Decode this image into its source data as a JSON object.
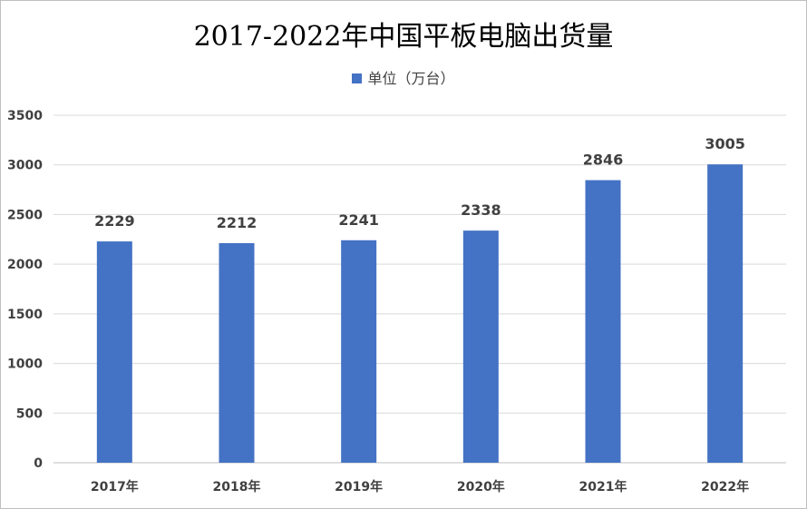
{
  "chart_data": {
    "type": "bar",
    "title": "2017-2022年中国平板电脑出货量",
    "legend_position": "top",
    "grid": true,
    "categories": [
      "2017年",
      "2018年",
      "2019年",
      "2020年",
      "2021年",
      "2022年"
    ],
    "series": [
      {
        "name": "单位（万台）",
        "color": "#4472c4",
        "values": [
          2229,
          2212,
          2241,
          2338,
          2846,
          3005
        ]
      }
    ],
    "ylim": [
      0,
      3500
    ],
    "yticks": [
      "0",
      "500",
      "1000",
      "1500",
      "2000",
      "2500",
      "3000",
      "3500"
    ],
    "data_labels": [
      "2229",
      "2212",
      "2241",
      "2338",
      "2846",
      "3005"
    ]
  }
}
